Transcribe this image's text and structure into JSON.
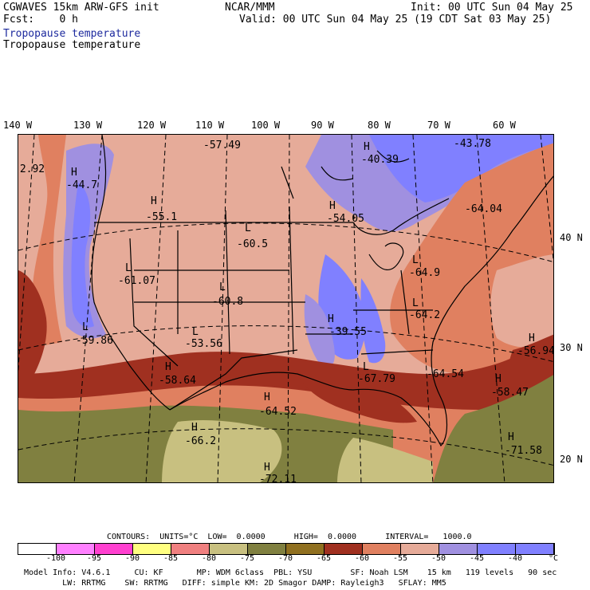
{
  "header": {
    "left1": "CGWAVES 15km ARW-GFS init",
    "left2": "Fcst:    0 h",
    "center": "NCAR/MMM",
    "right1": "Init: 00 UTC Sun 04 May 25",
    "right2": "Valid: 00 UTC Sun 04 May 25 (19 CDT Sat 03 May 25)",
    "field_blue": "Tropopause temperature",
    "field_black": "Tropopause temperature"
  },
  "axes": {
    "lon_labels": [
      "140 W",
      "130 W",
      "120 W",
      "110 W",
      "100 W",
      "90 W",
      "80 W",
      "70 W",
      "60 W"
    ],
    "lat_labels": [
      "40 N",
      "30 N",
      "20 N"
    ]
  },
  "map_labels": [
    {
      "mark": "H",
      "value": "-44.7"
    },
    {
      "mark": "H",
      "value": "-55.1"
    },
    {
      "mark": "L",
      "value": "-60.5"
    },
    {
      "mark": "L",
      "value": "-61.07"
    },
    {
      "mark": "L",
      "value": "-60.8"
    },
    {
      "mark": "L",
      "value": "-59.86"
    },
    {
      "mark": "L",
      "value": "-53.56"
    },
    {
      "mark": "H",
      "value": "-58.64"
    },
    {
      "mark": "H",
      "value": "-64.52"
    },
    {
      "mark": "H",
      "value": "-66.2"
    },
    {
      "mark": "H",
      "value": "-72.11"
    },
    {
      "mark": "",
      "value": "-57.49"
    },
    {
      "mark": "H",
      "value": "-40.39"
    },
    {
      "mark": "",
      "value": "-43.78"
    },
    {
      "mark": "H",
      "value": "-54.05"
    },
    {
      "mark": "",
      "value": "-64.04"
    },
    {
      "mark": "L",
      "value": "-64.9"
    },
    {
      "mark": "L",
      "value": "-64.2"
    },
    {
      "mark": "H",
      "value": "-39.55"
    },
    {
      "mark": "L",
      "value": "-67.79"
    },
    {
      "mark": "",
      "value": "-64.54"
    },
    {
      "mark": "H",
      "value": "-58.47"
    },
    {
      "mark": "H",
      "value": "-56.94"
    },
    {
      "mark": "H",
      "value": "-71.58"
    },
    {
      "mark": "",
      "value": "-2.92"
    }
  ],
  "contour_info": "CONTOURS:  UNITS=°C  LOW=  0.0000      HIGH=  0.0000      INTERVAL=   1000.0",
  "legend": {
    "colors": [
      "#ffffff",
      "#ff80ff",
      "#ff40d0",
      "#ffff80",
      "#f08080",
      "#c8c080",
      "#808040",
      "#907020",
      "#a03020",
      "#e08060",
      "#e6ab99",
      "#a090e0",
      "#8080ff",
      "#8080ff"
    ],
    "ticks": [
      "-100",
      "-95",
      "-90",
      "-85",
      "-80",
      "-75",
      "-70",
      "-65",
      "-60",
      "-55",
      "-50",
      "-45",
      "-40",
      "°C"
    ]
  },
  "footer": {
    "line1": "Model Info: V4.6.1     CU: KF       MP: WDM 6class  PBL: YSU        SF: Noah LSM    15 km   119 levels   90 sec",
    "line2": "        LW: RRTMG    SW: RRTMG   DIFF: simple KM: 2D Smagor DAMP: Rayleigh3   SFLAY: MM5"
  }
}
